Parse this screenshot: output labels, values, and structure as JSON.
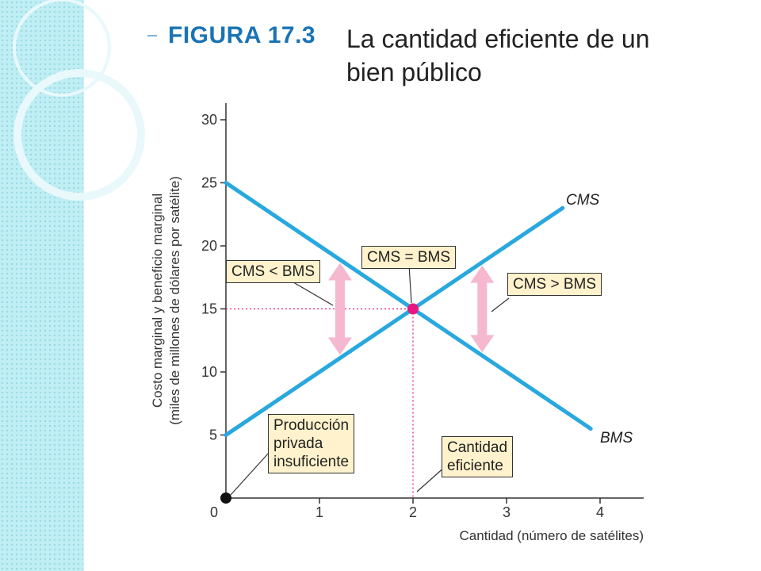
{
  "figure": {
    "label": "FIGURA 17.3",
    "title": "La cantidad eficiente de un bien público"
  },
  "colors": {
    "line": "#29a8df",
    "highlight": "#e8177f",
    "arrow": "#f5b8cf",
    "callout_bg": "#fff2cc",
    "band": "#bfeef4"
  },
  "chart_data": {
    "type": "line",
    "xlabel": "Cantidad (número de satélites)",
    "ylabel": "Costo marginal y beneficio marginal",
    "ylabel_units": "(miles de millones de dólares por satélite)",
    "xlim": [
      0,
      4.3
    ],
    "ylim": [
      0,
      31
    ],
    "x_ticks": [
      "0",
      "1",
      "2",
      "3",
      "4"
    ],
    "y_ticks": [
      "5",
      "10",
      "15",
      "20",
      "25",
      "30"
    ],
    "series": [
      {
        "name": "CMS",
        "x": [
          0,
          3.6
        ],
        "y": [
          5,
          23
        ]
      },
      {
        "name": "BMS",
        "x": [
          0,
          3.9
        ],
        "y": [
          25,
          5.5
        ]
      }
    ],
    "equilibrium": {
      "x": 2,
      "y": 15,
      "x_label": "2",
      "y_label": "15"
    },
    "origin_point": {
      "x": 0,
      "y": 0
    },
    "annotations": {
      "cms_lt_bms": "CMS < BMS",
      "cms_eq_bms": "CMS = BMS",
      "cms_gt_bms": "CMS > BMS",
      "underproduction": [
        "Producción",
        "privada",
        "insuficiente"
      ],
      "efficient": [
        "Cantidad",
        "eficiente"
      ]
    }
  }
}
